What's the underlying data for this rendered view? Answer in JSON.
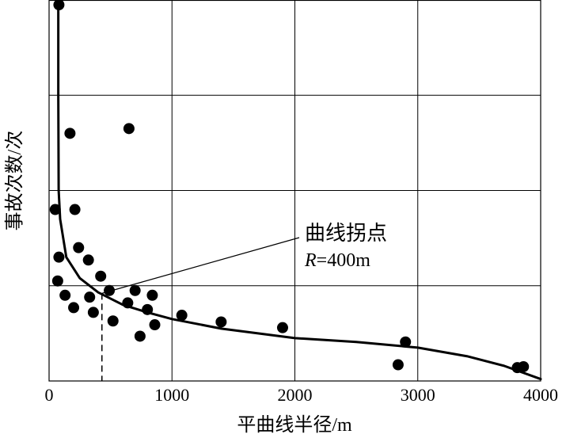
{
  "chart_data": {
    "type": "scatter",
    "title": "",
    "xlabel": "平曲线半径/m",
    "ylabel": "事故次数/次",
    "xlim": [
      0,
      4000
    ],
    "ylim": [
      0,
      4
    ],
    "x_ticks": [
      0,
      1000,
      2000,
      3000,
      4000
    ],
    "x_tick_labels": [
      "0",
      "1000",
      "2000",
      "3000",
      "4000"
    ],
    "y_ticks": [],
    "grid": true,
    "legend": "none",
    "series": [
      {
        "points": [
          [
            80,
            3.95
          ],
          [
            170,
            2.6
          ],
          [
            650,
            2.65
          ],
          [
            50,
            1.8
          ],
          [
            210,
            1.8
          ],
          [
            80,
            1.3
          ],
          [
            70,
            1.05
          ],
          [
            240,
            1.4
          ],
          [
            320,
            1.27
          ],
          [
            420,
            1.1
          ],
          [
            130,
            0.9
          ],
          [
            330,
            0.88
          ],
          [
            490,
            0.95
          ],
          [
            700,
            0.95
          ],
          [
            840,
            0.9
          ],
          [
            200,
            0.77
          ],
          [
            360,
            0.72
          ],
          [
            640,
            0.82
          ],
          [
            800,
            0.75
          ],
          [
            520,
            0.63
          ],
          [
            860,
            0.59
          ],
          [
            740,
            0.47
          ],
          [
            1080,
            0.69
          ],
          [
            1400,
            0.62
          ],
          [
            1900,
            0.56
          ],
          [
            2840,
            0.17
          ],
          [
            2900,
            0.41
          ],
          [
            3810,
            0.14
          ],
          [
            3860,
            0.15
          ]
        ]
      }
    ],
    "fit_curve": [
      [
        75,
        4.0
      ],
      [
        75,
        3.0
      ],
      [
        78,
        2.0
      ],
      [
        90,
        1.7
      ],
      [
        140,
        1.3
      ],
      [
        250,
        1.08
      ],
      [
        400,
        0.93
      ],
      [
        600,
        0.8
      ],
      [
        800,
        0.72
      ],
      [
        1000,
        0.65
      ],
      [
        1400,
        0.55
      ],
      [
        2000,
        0.45
      ],
      [
        2500,
        0.41
      ],
      [
        3000,
        0.35
      ],
      [
        3400,
        0.26
      ],
      [
        3700,
        0.16
      ],
      [
        4000,
        0.02
      ]
    ],
    "annotation": {
      "line1": "曲线拐点",
      "line2_italic": "R",
      "line2_rest": "=400m",
      "x": 430,
      "y": 0.92
    },
    "colors": {
      "points": "#000000",
      "grid": "#000000",
      "curve": "#000000"
    }
  }
}
